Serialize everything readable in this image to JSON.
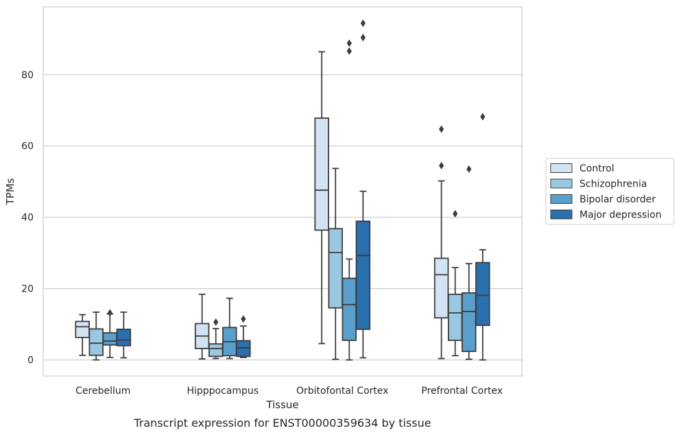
{
  "chart_data": {
    "type": "box",
    "caption": "Transcript expression for ENST00000359634 by tissue",
    "xlabel": "Tissue",
    "ylabel": "TPMs",
    "ylim": [
      -4.5,
      99
    ],
    "yticks": [
      0,
      20,
      40,
      60,
      80
    ],
    "grid": true,
    "legend_position": "right",
    "categories": [
      "Cerebellum",
      "Hipppocampus",
      "Orbitofontal Cortex",
      "Prefrontal Cortex"
    ],
    "series": [
      {
        "name": "Control",
        "color": "#d2e3f3",
        "boxes": [
          {
            "whisker_low": 1.3,
            "q1": 6.3,
            "median": 9.3,
            "q3": 10.8,
            "whisker_high": 12.7,
            "outliers": []
          },
          {
            "whisker_low": 0.3,
            "q1": 3.2,
            "median": 6.7,
            "q3": 10.2,
            "whisker_high": 18.4,
            "outliers": []
          },
          {
            "whisker_low": 4.6,
            "q1": 36.4,
            "median": 47.6,
            "q3": 67.8,
            "whisker_high": 86.4,
            "outliers": []
          },
          {
            "whisker_low": 0.4,
            "q1": 11.8,
            "median": 23.9,
            "q3": 28.5,
            "whisker_high": 50.2,
            "outliers": [
              54.5,
              64.7
            ]
          }
        ]
      },
      {
        "name": "Schizophrenia",
        "color": "#9ac8e0",
        "boxes": [
          {
            "whisker_low": 0.0,
            "q1": 1.3,
            "median": 4.7,
            "q3": 8.7,
            "whisker_high": 13.4,
            "outliers": []
          },
          {
            "whisker_low": 0.4,
            "q1": 1.0,
            "median": 3.2,
            "q3": 4.5,
            "whisker_high": 8.8,
            "outliers": [
              10.6
            ]
          },
          {
            "whisker_low": 0.2,
            "q1": 14.6,
            "median": 30.1,
            "q3": 36.8,
            "whisker_high": 53.7,
            "outliers": []
          },
          {
            "whisker_low": 1.2,
            "q1": 5.5,
            "median": 13.2,
            "q3": 18.4,
            "whisker_high": 25.9,
            "outliers": [
              41.0
            ]
          }
        ]
      },
      {
        "name": "Bipolar disorder",
        "color": "#5a9fcc",
        "boxes": [
          {
            "whisker_low": 0.7,
            "q1": 4.2,
            "median": 5.3,
            "q3": 7.6,
            "whisker_high": 12.9,
            "outliers": [
              13.2
            ]
          },
          {
            "whisker_low": 0.4,
            "q1": 1.2,
            "median": 5.1,
            "q3": 9.1,
            "whisker_high": 17.3,
            "outliers": []
          },
          {
            "whisker_low": 0.0,
            "q1": 5.5,
            "median": 15.5,
            "q3": 22.9,
            "whisker_high": 28.3,
            "outliers": [
              86.6,
              88.8
            ]
          },
          {
            "whisker_low": 0.2,
            "q1": 2.4,
            "median": 13.6,
            "q3": 18.8,
            "whisker_high": 27.0,
            "outliers": [
              53.5
            ]
          }
        ]
      },
      {
        "name": "Major depression",
        "color": "#2a6fae",
        "boxes": [
          {
            "whisker_low": 0.6,
            "q1": 4.0,
            "median": 5.6,
            "q3": 8.6,
            "whisker_high": 13.4,
            "outliers": []
          },
          {
            "whisker_low": 0.7,
            "q1": 1.0,
            "median": 3.4,
            "q3": 5.4,
            "whisker_high": 9.5,
            "outliers": [
              11.5
            ]
          },
          {
            "whisker_low": 0.6,
            "q1": 8.6,
            "median": 29.3,
            "q3": 38.9,
            "whisker_high": 47.3,
            "outliers": [
              90.4,
              94.4
            ]
          },
          {
            "whisker_low": 0.0,
            "q1": 9.7,
            "median": 18.1,
            "q3": 27.3,
            "whisker_high": 30.9,
            "outliers": [
              68.2
            ]
          }
        ]
      }
    ]
  }
}
